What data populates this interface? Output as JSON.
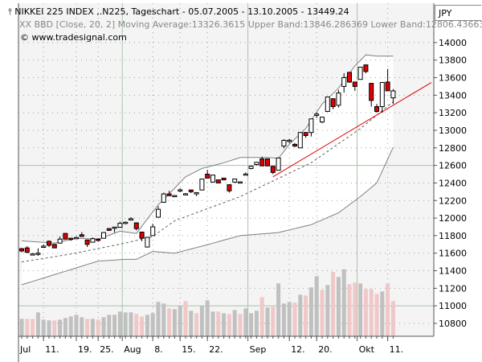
{
  "header": {
    "title_icon": "candlestick-icon",
    "title": "NIKKEI 225 INDEX ,.N225, Tageschart - 05.07.2005 - 13.10.2005 - 13449.24",
    "indicator": "XX BBD [Close, 20, 2] Moving Average:13326.3615 Upper Band:13846.286369 Lower Band:12806.436631",
    "copyright": "© www.tradesignal.com",
    "currency": "JPY"
  },
  "colors": {
    "up": "#ffffff",
    "down": "#e00000",
    "vol_up": "#c0c0c0",
    "vol_down": "#f0c8c8",
    "trend": "#e00000",
    "band": "#808080",
    "bg": "#f4f4f4"
  },
  "chart_data": {
    "type": "candlestick",
    "title": "NIKKEI 225 INDEX ,.N225, Tageschart",
    "ylim": [
      10700,
      14200
    ],
    "y_ticks": [
      10800,
      11000,
      11200,
      11400,
      11600,
      11800,
      12000,
      12200,
      12400,
      12600,
      12800,
      13000,
      13200,
      13400,
      13600,
      13800,
      14000
    ],
    "x_labels": [
      {
        "label": "Jul",
        "i": 0,
        "month": true
      },
      {
        "label": "11.",
        "i": 4
      },
      {
        "label": "19.",
        "i": 10
      },
      {
        "label": "25.",
        "i": 14
      },
      {
        "label": "Aug",
        "i": 19,
        "month": true
      },
      {
        "label": "8.",
        "i": 24
      },
      {
        "label": "15.",
        "i": 29
      },
      {
        "label": "22.",
        "i": 34
      },
      {
        "label": "Sep",
        "i": 42,
        "month": true
      },
      {
        "label": "12.",
        "i": 49
      },
      {
        "label": "20.",
        "i": 54
      },
      {
        "label": "Okt",
        "i": 62,
        "month": true
      },
      {
        "label": "11.",
        "i": 67
      }
    ],
    "ohlc": [
      [
        11651,
        11660,
        11610,
        11625
      ],
      [
        11660,
        11680,
        11600,
        11610
      ],
      [
        11590,
        11600,
        11575,
        11592
      ],
      [
        11595,
        11655,
        11570,
        11600
      ],
      [
        11675,
        11700,
        11660,
        11680
      ],
      [
        11735,
        11745,
        11670,
        11690
      ],
      [
        11700,
        11705,
        11660,
        11660
      ],
      [
        11715,
        11790,
        11710,
        11760
      ],
      [
        11825,
        11830,
        11760,
        11760
      ],
      [
        11770,
        11775,
        11740,
        11760
      ],
      [
        11775,
        11790,
        11765,
        11778
      ],
      [
        11810,
        11840,
        11790,
        11790
      ],
      [
        11750,
        11755,
        11670,
        11700
      ],
      [
        11725,
        11780,
        11725,
        11765
      ],
      [
        11760,
        11770,
        11730,
        11745
      ],
      [
        11770,
        11840,
        11770,
        11835
      ],
      [
        11880,
        11885,
        11855,
        11860
      ],
      [
        11893,
        11900,
        11835,
        11897
      ],
      [
        11895,
        11960,
        11890,
        11940
      ],
      [
        11948,
        11960,
        11930,
        11952
      ],
      [
        11988,
        12010,
        11985,
        11992
      ],
      [
        11945,
        11950,
        11860,
        11880
      ],
      [
        11840,
        11845,
        11735,
        11770
      ],
      [
        11670,
        11785,
        11665,
        11780
      ],
      [
        11800,
        11935,
        11800,
        11900
      ],
      [
        12010,
        12135,
        12005,
        12100
      ],
      [
        12180,
        12290,
        12175,
        12275
      ],
      [
        12275,
        12310,
        12250,
        12255
      ],
      [
        12253,
        12260,
        12240,
        12257
      ],
      [
        12318,
        12340,
        12295,
        12322
      ],
      [
        12273,
        12285,
        12270,
        12277
      ],
      [
        12320,
        12325,
        12285,
        12300
      ],
      [
        12275,
        12290,
        12250,
        12290
      ],
      [
        12320,
        12445,
        12320,
        12445
      ],
      [
        12500,
        12550,
        12455,
        12455
      ],
      [
        12410,
        12495,
        12405,
        12490
      ],
      [
        12435,
        12440,
        12400,
        12400
      ],
      [
        12455,
        12460,
        12435,
        12435
      ],
      [
        12380,
        12385,
        12290,
        12310
      ],
      [
        12410,
        12450,
        12400,
        12445
      ],
      [
        12408,
        12420,
        12400,
        12412
      ],
      [
        12498,
        12520,
        12495,
        12502
      ],
      [
        12565,
        12600,
        12555,
        12590
      ],
      [
        12610,
        12640,
        12600,
        12635
      ],
      [
        12675,
        12700,
        12590,
        12595
      ],
      [
        12675,
        12680,
        12590,
        12595
      ],
      [
        12590,
        12595,
        12500,
        12520
      ],
      [
        12545,
        12690,
        12545,
        12685
      ],
      [
        12820,
        12900,
        12795,
        12885
      ],
      [
        12883,
        12900,
        12855,
        12887
      ],
      [
        12840,
        12855,
        12810,
        12820
      ],
      [
        12800,
        12980,
        12800,
        12975
      ],
      [
        12975,
        12980,
        12915,
        12940
      ],
      [
        12975,
        13130,
        12930,
        13130
      ],
      [
        13170,
        13200,
        13140,
        13185
      ],
      [
        13095,
        13150,
        13080,
        13150
      ],
      [
        13215,
        13380,
        13210,
        13380
      ],
      [
        13360,
        13365,
        13240,
        13270
      ],
      [
        13285,
        13460,
        13260,
        13425
      ],
      [
        13500,
        13650,
        13430,
        13600
      ],
      [
        13660,
        13665,
        13540,
        13550
      ],
      [
        13550,
        13555,
        13450,
        13500
      ],
      [
        13580,
        13720,
        13580,
        13720
      ],
      [
        13745,
        13750,
        13650,
        13670
      ],
      [
        13535,
        13540,
        13270,
        13340
      ],
      [
        13270,
        13300,
        13200,
        13215
      ],
      [
        13270,
        13545,
        13200,
        13545
      ],
      [
        13550,
        13700,
        13450,
        13450
      ],
      [
        13370,
        13470,
        13300,
        13449
      ]
    ],
    "volume": [
      65,
      65,
      65,
      89,
      62,
      59,
      59,
      62,
      68,
      74,
      80,
      71,
      65,
      65,
      62,
      71,
      80,
      80,
      92,
      89,
      89,
      83,
      74,
      80,
      86,
      128,
      122,
      104,
      101,
      113,
      131,
      95,
      86,
      113,
      134,
      92,
      92,
      86,
      83,
      98,
      83,
      104,
      86,
      95,
      146,
      107,
      110,
      197,
      122,
      128,
      125,
      155,
      152,
      182,
      224,
      173,
      191,
      240,
      221,
      250,
      194,
      200,
      197,
      176,
      176,
      158,
      167,
      197,
      131
    ],
    "bollinger": {
      "params": "Close, 20, 2",
      "upper": [
        [
          0,
          11740
        ],
        [
          6,
          11715
        ],
        [
          10,
          11770
        ],
        [
          14,
          11760
        ],
        [
          18,
          11850
        ],
        [
          21,
          11825
        ],
        [
          23,
          11990
        ],
        [
          25,
          12150
        ],
        [
          28,
          12340
        ],
        [
          30,
          12470
        ],
        [
          33,
          12565
        ],
        [
          37,
          12630
        ],
        [
          40,
          12690
        ],
        [
          45,
          12690
        ],
        [
          47,
          12680
        ],
        [
          49,
          12840
        ],
        [
          52,
          13020
        ],
        [
          55,
          13300
        ],
        [
          58,
          13480
        ],
        [
          61,
          13735
        ],
        [
          63,
          13860
        ],
        [
          65,
          13845
        ],
        [
          68,
          13846
        ]
      ],
      "middle": [
        [
          0,
          11500
        ],
        [
          9,
          11590
        ],
        [
          19,
          11715
        ],
        [
          24,
          11790
        ],
        [
          28,
          11970
        ],
        [
          40,
          12245
        ],
        [
          53,
          12630
        ],
        [
          62,
          13020
        ],
        [
          68,
          13326
        ]
      ],
      "lower": [
        [
          0,
          11240
        ],
        [
          14,
          11510
        ],
        [
          19,
          11530
        ],
        [
          21,
          11530
        ],
        [
          24,
          11620
        ],
        [
          28,
          11600
        ],
        [
          33,
          11680
        ],
        [
          40,
          11800
        ],
        [
          47,
          11835
        ],
        [
          53,
          11925
        ],
        [
          58,
          12060
        ],
        [
          62,
          12245
        ],
        [
          65,
          12400
        ],
        [
          68,
          12806
        ]
      ]
    },
    "trendline": {
      "from": [
        46,
        12470
      ],
      "to": [
        75,
        13545
      ]
    }
  }
}
